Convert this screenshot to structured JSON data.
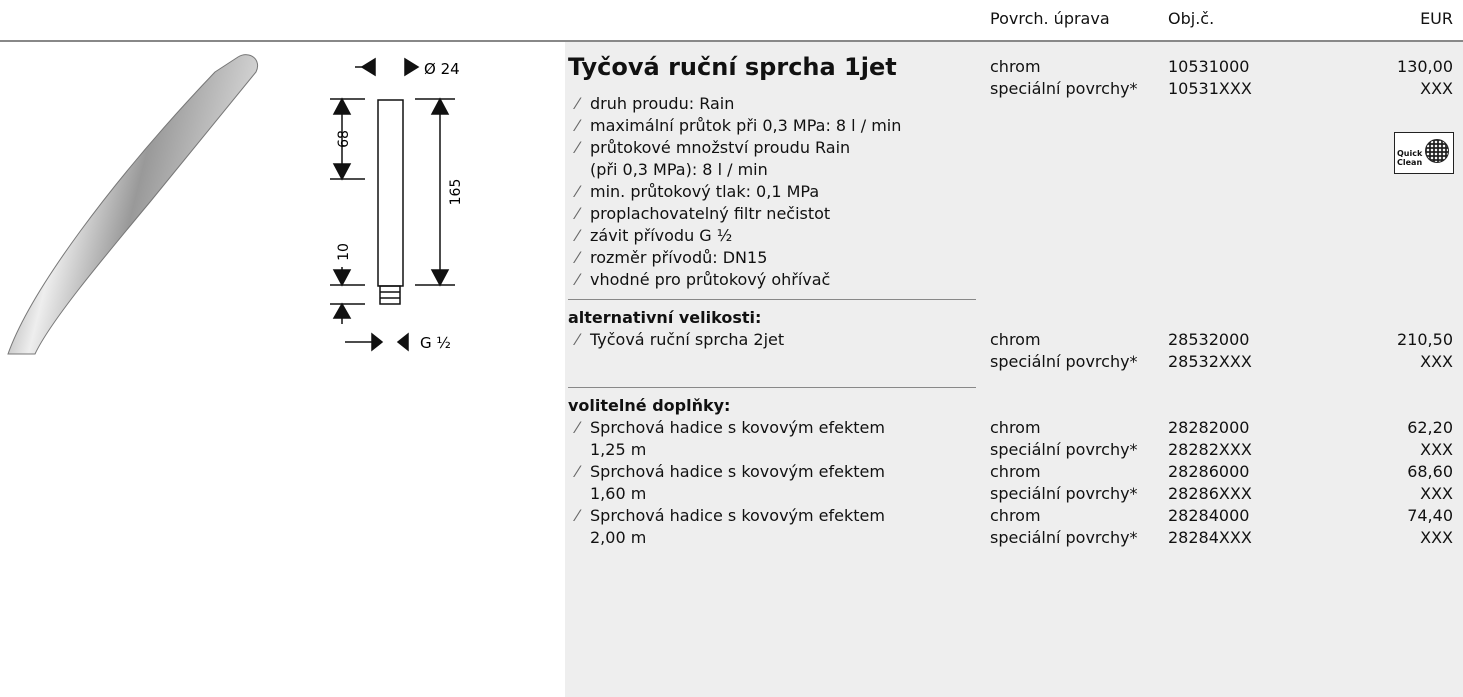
{
  "header": {
    "columns": [
      "Povrch. úprava",
      "Obj.č.",
      "EUR"
    ]
  },
  "diagram": {
    "labels": [
      "Ø 24",
      "68",
      "165",
      "10",
      "G ½"
    ]
  },
  "product": {
    "title": "Tyčová ruční sprcha 1jet",
    "features": [
      [
        "druh proudu: Rain"
      ],
      [
        "maximální průtok při 0,3 MPa: 8 l / min"
      ],
      [
        "průtokové množství proudu Rain",
        "(při 0,3 MPa): 8 l / min"
      ],
      [
        "min. průtokový tlak: 0,1 MPa"
      ],
      [
        "proplachovatelný filtr nečistot"
      ],
      [
        "závit přívodu G ½"
      ],
      [
        "rozměr přívodů: DN15"
      ],
      [
        "vhodné pro průtokový ohřívač"
      ]
    ],
    "rows": [
      [
        "chrom",
        "10531000",
        "130,00"
      ],
      [
        "speciální povrchy*",
        "10531XXX",
        "XXX"
      ]
    ],
    "badge": [
      "Quick",
      "Clean"
    ]
  },
  "sections": [
    {
      "heading": "alternativní velikosti:",
      "items": [
        {
          "lines": [
            "Tyčová ruční sprcha 2jet"
          ],
          "rows": [
            [
              "chrom",
              "28532000",
              "210,50"
            ],
            [
              "speciální povrchy*",
              "28532XXX",
              "XXX"
            ]
          ]
        }
      ]
    },
    {
      "heading": "volitelné doplňky:",
      "items": [
        {
          "lines": [
            "Sprchová hadice s kovovým efektem",
            "1,25 m"
          ],
          "rows": [
            [
              "chrom",
              "28282000",
              "62,20"
            ],
            [
              "speciální povrchy*",
              "28282XXX",
              "XXX"
            ]
          ]
        },
        {
          "lines": [
            "Sprchová hadice s kovovým efektem",
            "1,60 m"
          ],
          "rows": [
            [
              "chrom",
              "28286000",
              "68,60"
            ],
            [
              "speciální povrchy*",
              "28286XXX",
              "XXX"
            ]
          ]
        },
        {
          "lines": [
            "Sprchová hadice s kovovým efektem",
            "2,00 m"
          ],
          "rows": [
            [
              "chrom",
              "28284000",
              "74,40"
            ],
            [
              "speciální povrchy*",
              "28284XXX",
              "XXX"
            ]
          ]
        }
      ]
    }
  ]
}
